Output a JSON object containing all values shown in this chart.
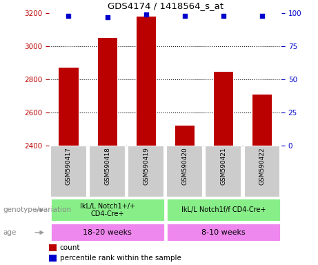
{
  "title": "GDS4174 / 1418564_s_at",
  "samples": [
    "GSM590417",
    "GSM590418",
    "GSM590419",
    "GSM590420",
    "GSM590421",
    "GSM590422"
  ],
  "counts": [
    2870,
    3050,
    3180,
    2520,
    2845,
    2710
  ],
  "percentile_ranks": [
    98,
    97,
    99,
    98,
    98,
    98
  ],
  "ylim_left": [
    2400,
    3200
  ],
  "ylim_right": [
    0,
    100
  ],
  "yticks_left": [
    2400,
    2600,
    2800,
    3000,
    3200
  ],
  "yticks_right": [
    0,
    25,
    50,
    75,
    100
  ],
  "bar_color": "#bb0000",
  "dot_color": "#0000cc",
  "genotype_groups": [
    {
      "label": "IkL/L Notch1+/+\nCD4-Cre+",
      "start": 0,
      "end": 3,
      "color": "#88ee88"
    },
    {
      "label": "IkL/L Notch1f/f CD4-Cre+",
      "start": 3,
      "end": 6,
      "color": "#88ee88"
    }
  ],
  "age_groups": [
    {
      "label": "18-20 weeks",
      "start": 0,
      "end": 3,
      "color": "#ee88ee"
    },
    {
      "label": "8-10 weeks",
      "start": 3,
      "end": 6,
      "color": "#ee88ee"
    }
  ],
  "legend_count_label": "count",
  "legend_pct_label": "percentile rank within the sample",
  "genotype_label": "genotype/variation",
  "age_label": "age",
  "tick_color_left": "#bb0000",
  "tick_color_right": "#0000cc",
  "bar_width": 0.5,
  "sample_box_color": "#cccccc",
  "fig_width": 4.61,
  "fig_height": 3.84,
  "dpi": 100
}
